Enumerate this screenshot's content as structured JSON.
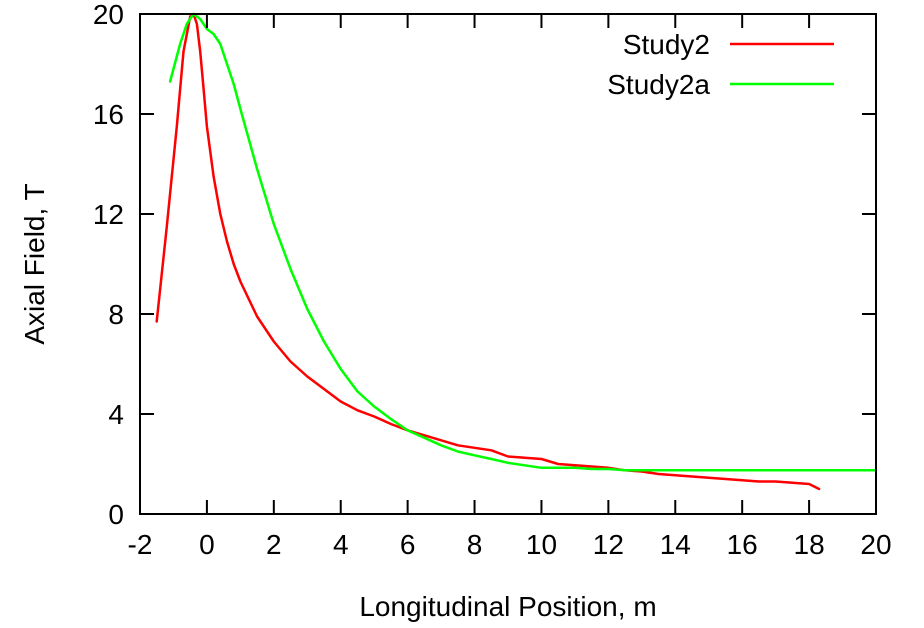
{
  "chart_data": {
    "type": "line",
    "title": "",
    "xlabel": "Longitudinal Position, m",
    "ylabel": "Axial Field, T",
    "xlim": [
      -2,
      20
    ],
    "ylim": [
      0,
      20
    ],
    "xticks": [
      -2,
      0,
      2,
      4,
      6,
      8,
      10,
      12,
      14,
      16,
      18,
      20
    ],
    "yticks": [
      0,
      4,
      8,
      12,
      16,
      20
    ],
    "xtick_labels": [
      "-2",
      "0",
      "2",
      "4",
      "6",
      "8",
      "10",
      "12",
      "14",
      "16",
      "18",
      "20"
    ],
    "ytick_labels": [
      "0",
      "4",
      "8",
      "12",
      "16",
      "20"
    ],
    "grid": false,
    "legend_position": "top-right",
    "series": [
      {
        "name": "Study2",
        "color": "#ff0000",
        "x": [
          -1.5,
          -1.2,
          -0.9,
          -0.7,
          -0.5,
          -0.4,
          -0.3,
          -0.2,
          -0.1,
          0.0,
          0.2,
          0.4,
          0.6,
          0.8,
          1.0,
          1.5,
          2.0,
          2.5,
          3.0,
          3.5,
          4.0,
          4.5,
          5.0,
          5.5,
          6.0,
          6.5,
          7.0,
          7.5,
          8.0,
          8.5,
          9.0,
          9.5,
          10.0,
          10.5,
          11.0,
          11.5,
          12.0,
          12.5,
          13.0,
          13.5,
          14.0,
          14.5,
          15.0,
          15.5,
          16.0,
          16.5,
          17.0,
          17.5,
          18.0,
          18.3
        ],
        "y": [
          7.7,
          11.5,
          15.5,
          18.5,
          19.9,
          20.0,
          19.6,
          18.5,
          17.0,
          15.5,
          13.5,
          12.0,
          10.9,
          10.0,
          9.3,
          7.9,
          6.9,
          6.1,
          5.5,
          5.0,
          4.5,
          4.15,
          3.9,
          3.6,
          3.35,
          3.15,
          2.95,
          2.75,
          2.65,
          2.55,
          2.3,
          2.25,
          2.2,
          2.0,
          1.95,
          1.9,
          1.85,
          1.75,
          1.7,
          1.6,
          1.55,
          1.5,
          1.45,
          1.4,
          1.35,
          1.3,
          1.3,
          1.25,
          1.2,
          1.0
        ]
      },
      {
        "name": "Study2a",
        "color": "#00ff00",
        "x": [
          -1.1,
          -0.8,
          -0.6,
          -0.4,
          -0.2,
          0.0,
          0.2,
          0.4,
          0.6,
          0.8,
          1.0,
          1.5,
          2.0,
          2.5,
          3.0,
          3.5,
          4.0,
          4.5,
          5.0,
          5.5,
          6.0,
          6.5,
          7.0,
          7.5,
          8.0,
          8.5,
          9.0,
          9.5,
          10.0,
          10.5,
          11.0,
          11.5,
          12.0,
          12.5,
          13.0,
          13.5,
          14.0,
          14.5,
          15.0,
          15.5,
          16.0,
          16.5,
          17.0,
          17.5,
          18.0,
          18.5,
          19.0,
          19.5,
          20.0
        ],
        "y": [
          17.3,
          18.8,
          19.6,
          20.0,
          19.8,
          19.4,
          19.2,
          18.8,
          18.0,
          17.2,
          16.2,
          13.8,
          11.6,
          9.8,
          8.2,
          6.9,
          5.8,
          4.9,
          4.3,
          3.8,
          3.35,
          3.05,
          2.75,
          2.5,
          2.35,
          2.2,
          2.05,
          1.95,
          1.85,
          1.85,
          1.85,
          1.8,
          1.8,
          1.75,
          1.75,
          1.75,
          1.75,
          1.75,
          1.75,
          1.75,
          1.75,
          1.75,
          1.75,
          1.75,
          1.75,
          1.75,
          1.75,
          1.75,
          1.75
        ]
      }
    ]
  }
}
